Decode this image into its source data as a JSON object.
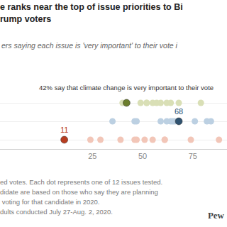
{
  "chart_data": {
    "type": "dot",
    "title": [
      "e ranks near the top of issue priorities to Bi",
      "rump voters"
    ],
    "subtitle": "ers saying each issue is 'very important' to their vote i",
    "annotation": "42% say that climate change is very important to their vote",
    "rows": [
      {
        "color": "#d9dfb6",
        "values": [
          79,
          68,
          64,
          62,
          59,
          57,
          55,
          52,
          52,
          49,
          40
        ],
        "highlight": {
          "value": 42,
          "color": "#6b7d2c",
          "data_labels": false
        }
      },
      {
        "color": "#bcd0e2",
        "values": [
          84,
          82,
          76,
          66,
          65,
          64,
          62,
          59,
          47,
          46,
          35
        ],
        "highlight": {
          "value": 68,
          "color": "#2f5270",
          "data_labels": true
        }
      },
      {
        "color": "#f2c6b8",
        "values": [
          88,
          74,
          61,
          61,
          55,
          51,
          47,
          46,
          39,
          29,
          24
        ],
        "highlight": {
          "value": 11,
          "color": "#b83d20",
          "data_labels": true
        }
      }
    ],
    "xlim": [
      -21,
      92
    ],
    "xticks": [
      25,
      50,
      75
    ],
    "grid": true,
    "footer": [
      "ed votes. Each dot represents one of 12 issues tested.",
      "didate are based on those who say they are planning",
      " voting for that candidate in 2020.",
      "dults conducted July 27-Aug. 2, 2020."
    ],
    "source": "Pew"
  }
}
